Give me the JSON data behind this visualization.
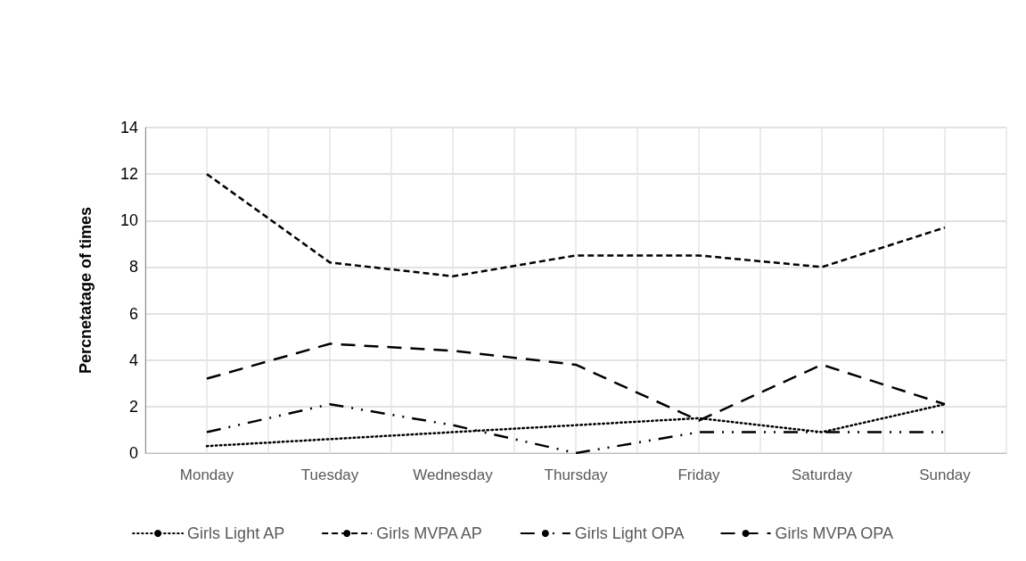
{
  "chart_data": {
    "type": "line",
    "ylabel": "Percnetatage of times",
    "categories": [
      "Monday",
      "Tuesday",
      "Wednesday",
      "Thursday",
      "Friday",
      "Saturday",
      "Sunday"
    ],
    "series": [
      {
        "name": "Girls Light AP",
        "color": "#000000",
        "line_style": "dotted",
        "values": [
          0.3,
          0.6,
          0.9,
          1.2,
          1.5,
          0.9,
          2.1
        ]
      },
      {
        "name": "Girls MVPA AP",
        "color": "#000000",
        "line_style": "dashed",
        "values": [
          12.0,
          8.2,
          7.6,
          8.5,
          8.5,
          8.0,
          9.7
        ]
      },
      {
        "name": "Girls Light OPA",
        "color": "#000000",
        "line_style": "dashdot",
        "values": [
          0.9,
          2.1,
          1.2,
          0,
          0.9,
          0.9,
          0.9
        ]
      },
      {
        "name": "Girls MVPA OPA",
        "color": "#000000",
        "line_style": "longdash",
        "values": [
          3.2,
          4.7,
          4.4,
          3.8,
          1.4,
          3.8,
          2.1
        ]
      }
    ],
    "ylim": [
      0,
      14
    ],
    "yticks": [
      0,
      2,
      4,
      6,
      8,
      10,
      12,
      14
    ],
    "grid": true,
    "legend": "bottom",
    "marker": "none"
  }
}
